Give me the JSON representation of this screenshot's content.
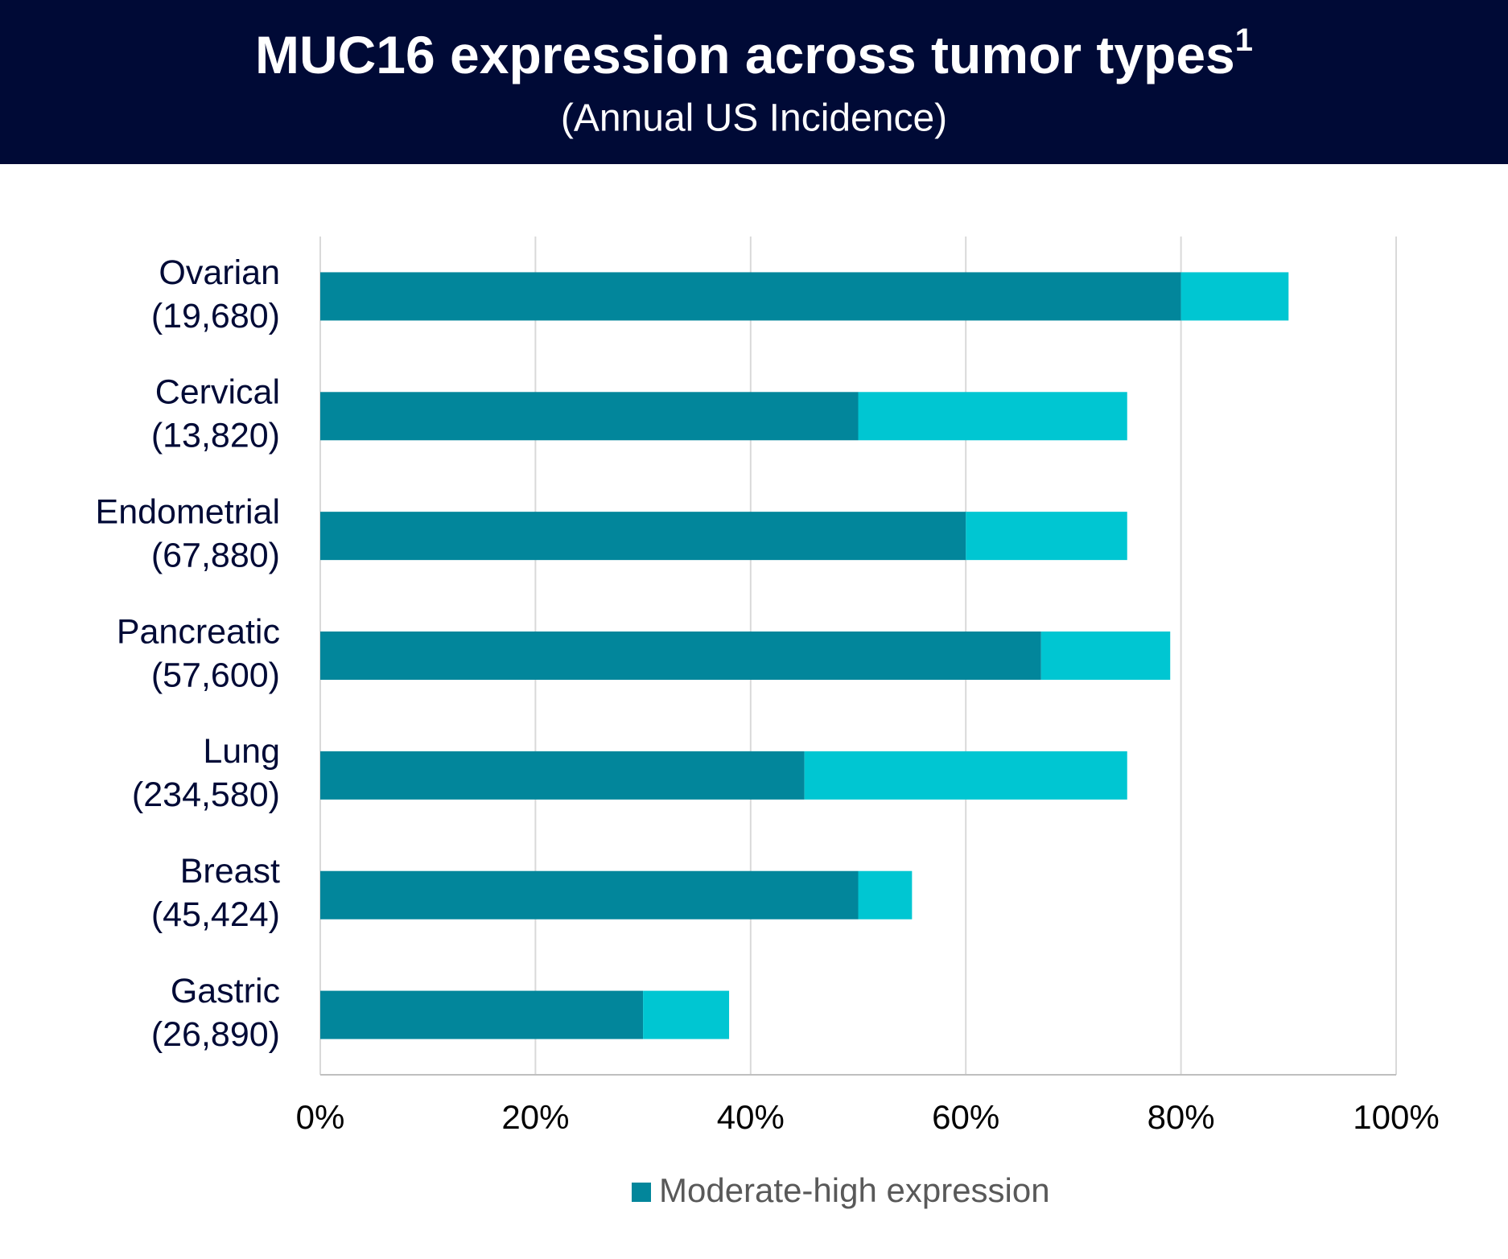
{
  "chart_data": {
    "type": "stacked-bar-horizontal",
    "title": "MUC16 expression across tumor types",
    "title_superscript": "1",
    "subtitle": "(Annual US Incidence)",
    "categories": [
      "Ovarian",
      "Cervical",
      "Endometrial",
      "Pancreatic",
      "Lung",
      "Breast",
      "Gastric"
    ],
    "category_notes": [
      "(19,680)",
      "(13,820)",
      "(67,880)",
      "(57,600)",
      "(234,580)",
      "(45,424)",
      "(26,890)"
    ],
    "series": [
      {
        "name": "Moderate-high expression",
        "color": "#02869b",
        "values": [
          80,
          50,
          60,
          67,
          45,
          50,
          30
        ]
      },
      {
        "color": "#00c6d2",
        "values": [
          10,
          25,
          15,
          12,
          30,
          5,
          8
        ]
      }
    ],
    "xlim": [
      0,
      100
    ],
    "xticks": [
      {
        "value": 0,
        "label": "0%"
      },
      {
        "value": 20,
        "label": "20%"
      },
      {
        "value": 40,
        "label": "40%"
      },
      {
        "value": 60,
        "label": "60%"
      },
      {
        "value": 80,
        "label": "80%"
      },
      {
        "value": 100,
        "label": "100%"
      }
    ],
    "grid": true,
    "legend": "bottom"
  }
}
